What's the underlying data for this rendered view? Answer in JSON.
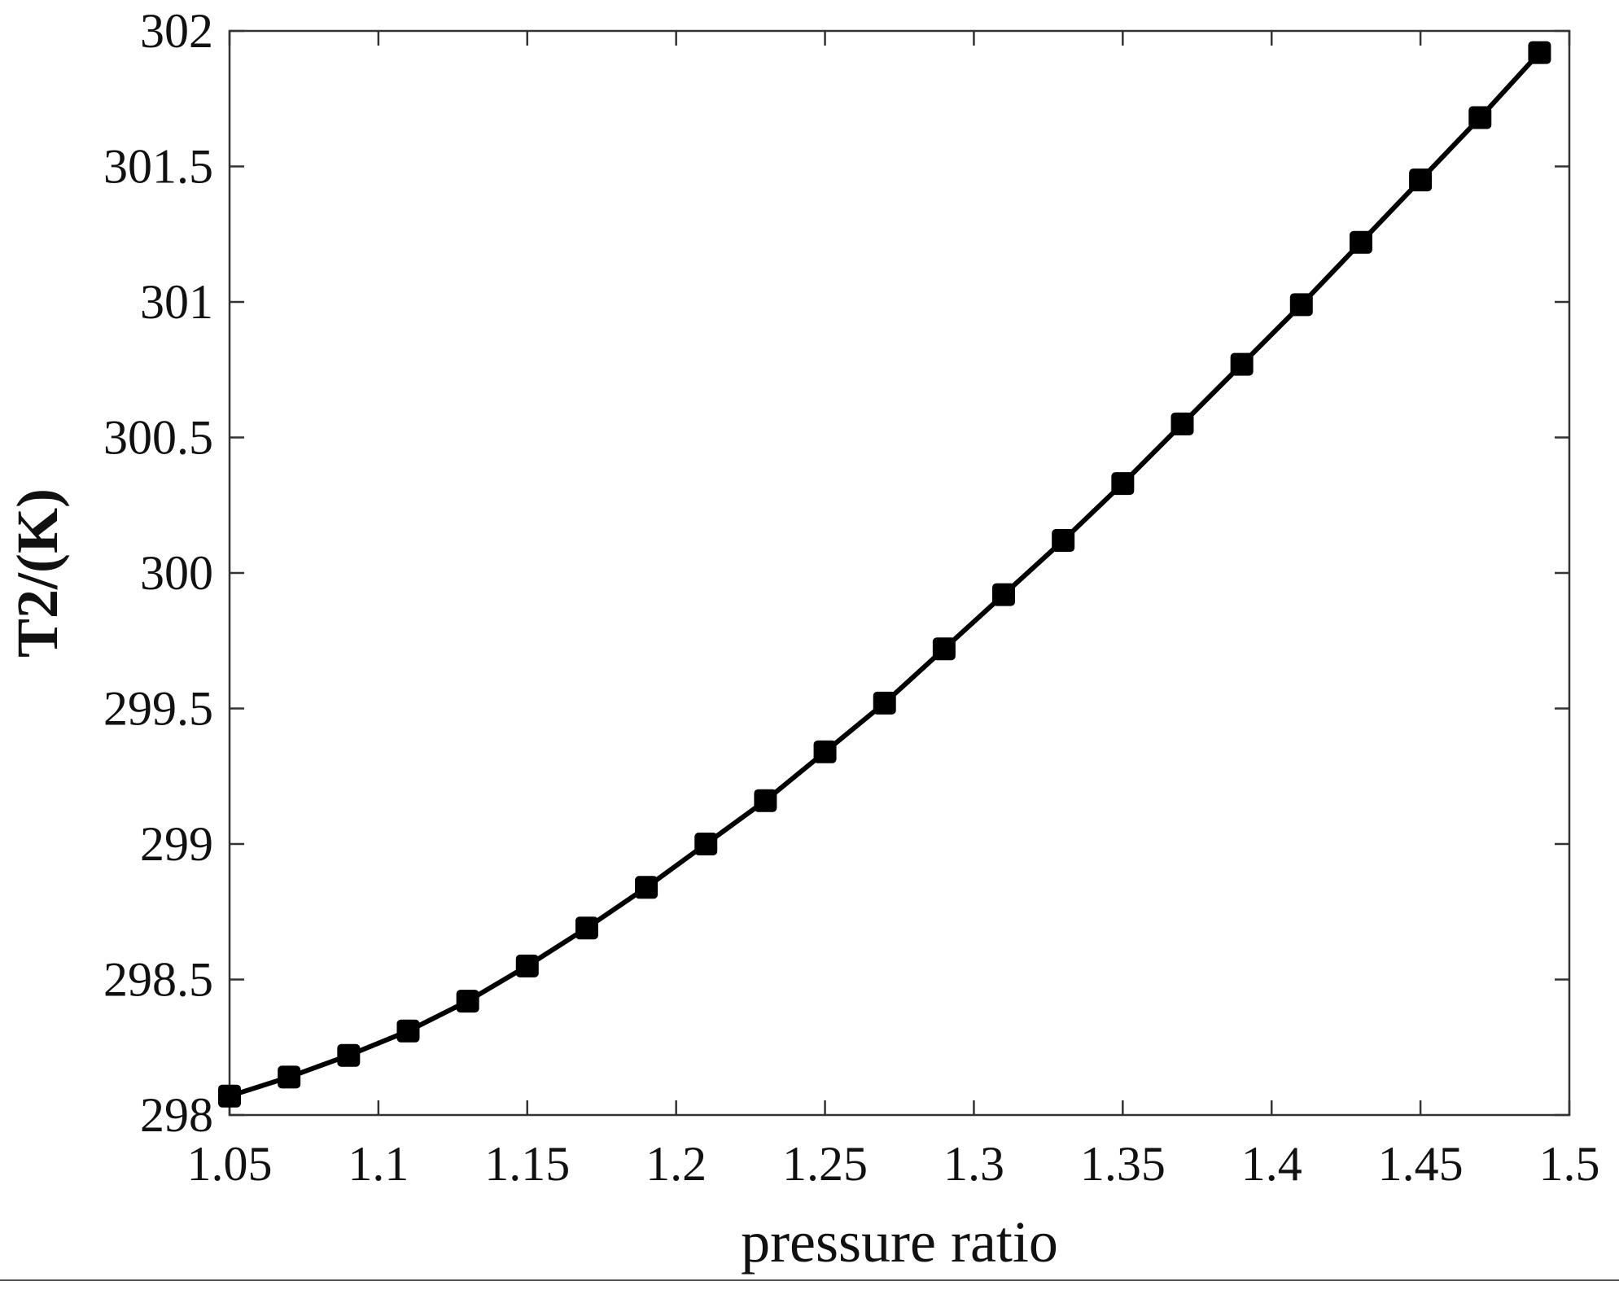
{
  "chart_data": {
    "type": "line",
    "title": "",
    "xlabel": "pressure ratio",
    "ylabel": "T2/(K)",
    "xlim": [
      1.05,
      1.5
    ],
    "ylim": [
      298,
      302
    ],
    "xticks": [
      1.05,
      1.1,
      1.15,
      1.2,
      1.25,
      1.3,
      1.35,
      1.4,
      1.45,
      1.5
    ],
    "xtick_labels": [
      "1.05",
      "1.1",
      "1.15",
      "1.2",
      "1.25",
      "1.3",
      "1.35",
      "1.4",
      "1.45",
      "1.5"
    ],
    "yticks": [
      298,
      298.5,
      299,
      299.5,
      300,
      300.5,
      301,
      301.5,
      302
    ],
    "ytick_labels": [
      "298",
      "298.5",
      "299",
      "299.5",
      "300",
      "300.5",
      "301",
      "301.5",
      "302"
    ],
    "grid": false,
    "line_color": "#000000",
    "marker": "square",
    "series": [
      {
        "x": [
          1.05,
          1.07,
          1.09,
          1.11,
          1.13,
          1.15,
          1.17,
          1.19,
          1.21,
          1.23,
          1.25,
          1.27,
          1.29,
          1.31,
          1.33,
          1.35,
          1.37,
          1.39,
          1.41,
          1.43,
          1.45,
          1.47,
          1.49
        ],
        "y": [
          298.07,
          298.14,
          298.22,
          298.31,
          298.42,
          298.55,
          298.69,
          298.84,
          299.0,
          299.16,
          299.34,
          299.52,
          299.72,
          299.92,
          300.12,
          300.33,
          300.55,
          300.77,
          300.99,
          301.22,
          301.45,
          301.68,
          301.92
        ]
      }
    ]
  }
}
